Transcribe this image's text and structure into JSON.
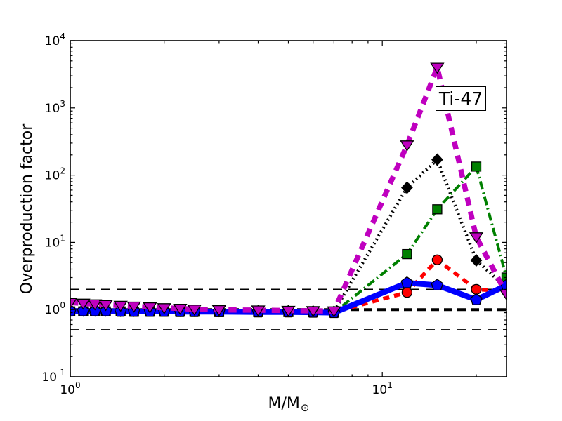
{
  "figure": {
    "background": "#ffffff",
    "text_color": "#000000"
  },
  "chart_data": {
    "type": "line",
    "title": "",
    "xlabel": {
      "text": "M/M",
      "sub": "⊙"
    },
    "ylabel": "Overproduction factor",
    "x_scale": "log",
    "y_scale": "log",
    "xlim": [
      1,
      25
    ],
    "ylim": [
      0.1,
      10000
    ],
    "grid": false,
    "legend": "none",
    "tick_base": "10",
    "x_tick_values": [
      1,
      10
    ],
    "x_tick_exponents": [
      "0",
      "1"
    ],
    "x_minor_ticks": [
      2,
      3,
      4,
      5,
      6,
      7,
      8,
      9,
      20
    ],
    "y_tick_values": [
      0.1,
      1,
      10,
      100,
      1000,
      10000
    ],
    "y_tick_exponents": [
      "-1",
      "0",
      "1",
      "2",
      "3",
      "4"
    ],
    "annotation": {
      "text": "Ti-47",
      "x": 17.8,
      "y": 1400
    },
    "x": [
      1.0,
      1.1,
      1.2,
      1.3,
      1.45,
      1.6,
      1.8,
      2.0,
      2.25,
      2.5,
      3.0,
      4.0,
      5.0,
      6.0,
      7.0,
      12,
      15,
      20,
      25
    ],
    "series": [
      {
        "name": "black-dotted-diamond",
        "color": "#000000",
        "line_style": "dotted",
        "line_width": 4.5,
        "marker": "diamond",
        "marker_fill": "#000000",
        "values": [
          0.97,
          0.97,
          0.97,
          0.97,
          0.96,
          0.96,
          0.96,
          0.96,
          0.96,
          0.96,
          0.95,
          0.95,
          0.95,
          0.94,
          0.93,
          65,
          170,
          5.4,
          2.1
        ]
      },
      {
        "name": "green-dashdot-square",
        "color": "#008000",
        "line_style": "dashdot",
        "line_width": 4,
        "marker": "square",
        "marker_fill": "#008000",
        "values": [
          0.94,
          0.94,
          0.94,
          0.94,
          0.94,
          0.93,
          0.93,
          0.93,
          0.93,
          0.93,
          0.92,
          0.92,
          0.92,
          0.91,
          0.9,
          6.7,
          31,
          134,
          3.0
        ]
      },
      {
        "name": "red-dashed-circle",
        "color": "#ff0000",
        "line_style": "dashed",
        "line_width": 5.5,
        "marker": "circle",
        "marker_fill": "#ff0000",
        "values": [
          0.96,
          0.96,
          0.96,
          0.96,
          0.95,
          0.95,
          0.95,
          0.95,
          0.95,
          0.94,
          0.94,
          0.94,
          0.93,
          0.93,
          0.92,
          1.8,
          5.5,
          2.0,
          1.9
        ]
      },
      {
        "name": "blue-solid-pentagon",
        "color": "#0000ff",
        "line_style": "solid",
        "line_width": 8,
        "marker": "pentagon",
        "marker_fill": "#0000ff",
        "values": [
          0.95,
          0.95,
          0.95,
          0.95,
          0.94,
          0.94,
          0.94,
          0.94,
          0.93,
          0.93,
          0.93,
          0.92,
          0.92,
          0.91,
          0.9,
          2.5,
          2.3,
          1.4,
          2.3
        ]
      },
      {
        "name": "magenta-dashed-triangle",
        "color": "#bf00bf",
        "line_style": "dashed-wide",
        "line_width": 7.5,
        "marker": "triangle-down",
        "marker_fill": "#bf00bf",
        "values": [
          1.27,
          1.24,
          1.21,
          1.18,
          1.15,
          1.12,
          1.09,
          1.06,
          1.04,
          1.01,
          0.99,
          0.98,
          0.97,
          0.96,
          0.95,
          280,
          4000,
          12,
          1.7
        ]
      }
    ],
    "reference_lines": [
      {
        "y": 1.0,
        "style": "dashed",
        "width": 4.0
      },
      {
        "y": 2.0,
        "style": "dashed",
        "width": 1.7
      },
      {
        "y": 0.5,
        "style": "dashed",
        "width": 1.7
      }
    ]
  }
}
